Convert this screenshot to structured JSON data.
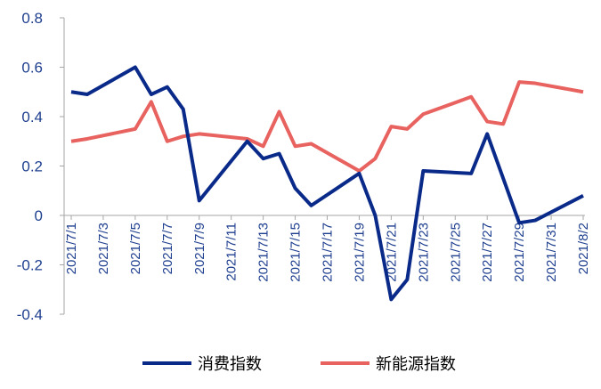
{
  "chart_data": {
    "type": "line",
    "x": [
      "2021/7/1",
      "2021/7/2",
      "2021/7/5",
      "2021/7/6",
      "2021/7/7",
      "2021/7/8",
      "2021/7/9",
      "2021/7/12",
      "2021/7/13",
      "2021/7/14",
      "2021/7/15",
      "2021/7/16",
      "2021/7/19",
      "2021/7/20",
      "2021/7/21",
      "2021/7/22",
      "2021/7/23",
      "2021/7/26",
      "2021/7/27",
      "2021/7/28",
      "2021/7/29",
      "2021/7/30",
      "2021/8/2"
    ],
    "series": [
      {
        "name": "消费指数",
        "color": "#0a2a8a",
        "values": [
          0.5,
          0.49,
          0.6,
          0.49,
          0.52,
          0.43,
          0.06,
          0.3,
          0.23,
          0.25,
          0.11,
          0.04,
          0.17,
          0.0,
          -0.34,
          -0.26,
          0.18,
          0.17,
          0.33,
          0.15,
          -0.03,
          -0.02,
          0.08
        ]
      },
      {
        "name": "新能源指数",
        "color": "#e8625f",
        "values": [
          0.3,
          0.31,
          0.35,
          0.46,
          0.3,
          0.32,
          0.33,
          0.31,
          0.28,
          0.42,
          0.28,
          0.29,
          0.18,
          0.23,
          0.36,
          0.35,
          0.41,
          0.48,
          0.38,
          0.37,
          0.54,
          0.535,
          0.5
        ]
      }
    ],
    "xlim": [
      "2021/7/1",
      "2021/8/2"
    ],
    "xticks": [
      "2021/7/1",
      "2021/7/3",
      "2021/7/5",
      "2021/7/7",
      "2021/7/9",
      "2021/7/11",
      "2021/7/13",
      "2021/7/15",
      "2021/7/17",
      "2021/7/19",
      "2021/7/21",
      "2021/7/23",
      "2021/7/25",
      "2021/7/27",
      "2021/7/29",
      "2021/7/31",
      "2021/8/2"
    ],
    "ylim": [
      -0.4,
      0.8
    ],
    "yticks": [
      {
        "value": 0.8,
        "label": "0.8"
      },
      {
        "value": 0.6,
        "label": "0.6"
      },
      {
        "value": 0.4,
        "label": "0.4"
      },
      {
        "value": 0.2,
        "label": "0.2"
      },
      0,
      {
        "value": -0.2,
        "label": "-0.2"
      },
      {
        "value": -0.4,
        "label": "-0.4"
      }
    ],
    "legend": "bottom"
  }
}
